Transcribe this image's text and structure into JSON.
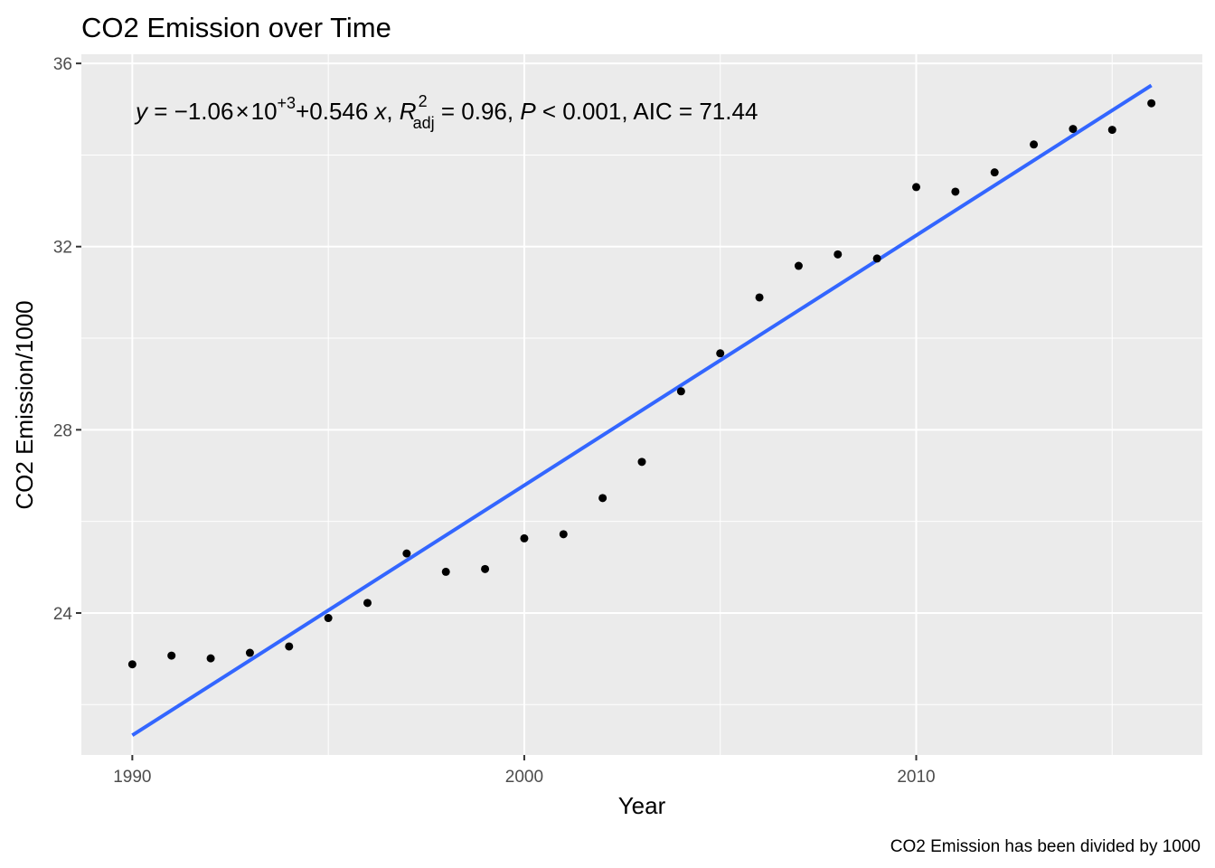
{
  "chart_data": {
    "type": "scatter",
    "title": "CO2 Emission over Time",
    "xlabel": "Year",
    "ylabel": "CO2 Emission/1000",
    "caption": "CO2 Emission has been divided by 1000",
    "xlim": [
      1988.7,
      2017.3
    ],
    "ylim": [
      20.9,
      36.2
    ],
    "x_ticks": [
      1990,
      2000,
      2010
    ],
    "y_ticks": [
      24,
      28,
      32,
      36
    ],
    "grid": true,
    "panel_background": "#EBEBEB",
    "points": [
      {
        "x": 1990,
        "y": 22.88
      },
      {
        "x": 1991,
        "y": 23.07
      },
      {
        "x": 1992,
        "y": 23.01
      },
      {
        "x": 1993,
        "y": 23.13
      },
      {
        "x": 1994,
        "y": 23.27
      },
      {
        "x": 1995,
        "y": 23.89
      },
      {
        "x": 1996,
        "y": 24.22
      },
      {
        "x": 1997,
        "y": 25.3
      },
      {
        "x": 1998,
        "y": 24.9
      },
      {
        "x": 1999,
        "y": 24.96
      },
      {
        "x": 2000,
        "y": 25.63
      },
      {
        "x": 2001,
        "y": 25.72
      },
      {
        "x": 2002,
        "y": 26.51
      },
      {
        "x": 2003,
        "y": 27.3
      },
      {
        "x": 2004,
        "y": 28.84
      },
      {
        "x": 2005,
        "y": 29.67
      },
      {
        "x": 2006,
        "y": 30.89
      },
      {
        "x": 2007,
        "y": 31.58
      },
      {
        "x": 2008,
        "y": 31.83
      },
      {
        "x": 2009,
        "y": 31.74
      },
      {
        "x": 2010,
        "y": 33.3
      },
      {
        "x": 2011,
        "y": 33.2
      },
      {
        "x": 2012,
        "y": 33.62
      },
      {
        "x": 2013,
        "y": 34.23
      },
      {
        "x": 2014,
        "y": 34.57
      },
      {
        "x": 2015,
        "y": 34.55
      },
      {
        "x": 2016,
        "y": 35.13
      }
    ],
    "fit_line": {
      "color": "#3366FF",
      "x": [
        1990,
        2016
      ],
      "y": [
        21.33,
        35.52
      ]
    },
    "equation": {
      "y": "y",
      "eq1": " = ",
      "minus": "−",
      "coef": "1.06",
      "times": "×",
      "ten": "10",
      "exp": "+3",
      "plus": "+",
      "slope": "0.546",
      "x": "x",
      "comma1": ", ",
      "r": "R",
      "r_sup": "2",
      "r_sub": "adj",
      "r_val": " = 0.96, ",
      "p": "P",
      "p_val": " < 0.001, AIC = 71.44"
    }
  }
}
